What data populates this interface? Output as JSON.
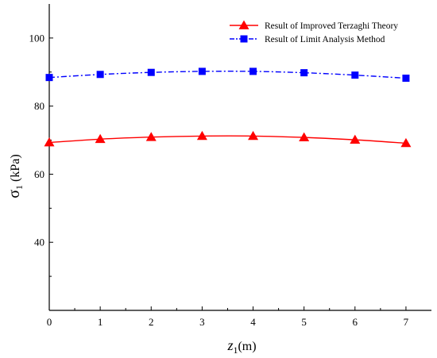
{
  "chart_data": {
    "type": "line",
    "x": [
      0,
      1,
      2,
      3,
      4,
      5,
      6,
      7
    ],
    "xlim": [
      0,
      7.5
    ],
    "ylim": [
      20,
      110
    ],
    "xticks": [
      "0",
      "1",
      "2",
      "3",
      "4",
      "5",
      "6",
      "7"
    ],
    "yticks": [
      "40",
      "60",
      "80",
      "100"
    ],
    "ytick_values": [
      40,
      60,
      80,
      100
    ],
    "xlabel": {
      "symbol": "z",
      "subscript": "1",
      "unit": "(m)"
    },
    "ylabel": {
      "symbol": "σ",
      "subscript": "1",
      "unit": "(kPa)"
    },
    "grid": false,
    "legend_position": "top-right",
    "series": [
      {
        "name": "Result of Improved Terzaghi Theory",
        "color": "#ff0000",
        "marker": "triangle",
        "line_style": "solid",
        "values": [
          69.3,
          70.3,
          70.9,
          71.2,
          71.2,
          70.8,
          70.1,
          69.1
        ]
      },
      {
        "name": "Result of Limit Analysis Method",
        "color": "#0000ff",
        "marker": "square",
        "line_style": "dash-dot",
        "values": [
          88.4,
          89.3,
          89.9,
          90.2,
          90.2,
          89.8,
          89.1,
          88.2
        ]
      }
    ]
  }
}
